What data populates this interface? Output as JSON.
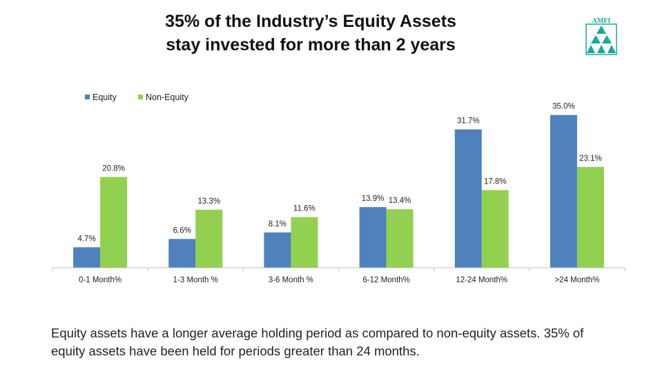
{
  "title": {
    "line1": "35% of the Industry’s Equity Assets",
    "line2": "stay invested for more than 2 years"
  },
  "logo": {
    "text": "AMFI",
    "icon": "amfi-logo-icon",
    "color": "#1aa79a"
  },
  "chart_data": {
    "type": "bar",
    "categories": [
      "0-1 Month%",
      "1-3 Month %",
      "3-6 Month %",
      "6-12 Month%",
      "12-24 Month%",
      ">24 Month%"
    ],
    "series": [
      {
        "name": "Equity",
        "color": "#4f81bd",
        "values": [
          4.7,
          6.6,
          8.1,
          13.9,
          31.7,
          35.0
        ],
        "labels": [
          "4.7%",
          "6.6%",
          "8.1%",
          "13.9%",
          "31.7%",
          "35.0%"
        ]
      },
      {
        "name": "Non-Equity",
        "color": "#92d050",
        "values": [
          20.8,
          13.3,
          11.6,
          13.4,
          17.8,
          23.1
        ],
        "labels": [
          "20.8%",
          "13.3%",
          "11.6%",
          "13.4%",
          "17.8%",
          "23.1%"
        ]
      }
    ],
    "ylim": [
      0,
      40
    ],
    "grid": false,
    "legend": "top-left",
    "xlabel": "",
    "ylabel": ""
  },
  "caption": {
    "line1": "Equity assets have a longer average holding period as compared to non-equity assets. 35% of",
    "line2": "equity assets have been held for periods greater than 24 months."
  }
}
